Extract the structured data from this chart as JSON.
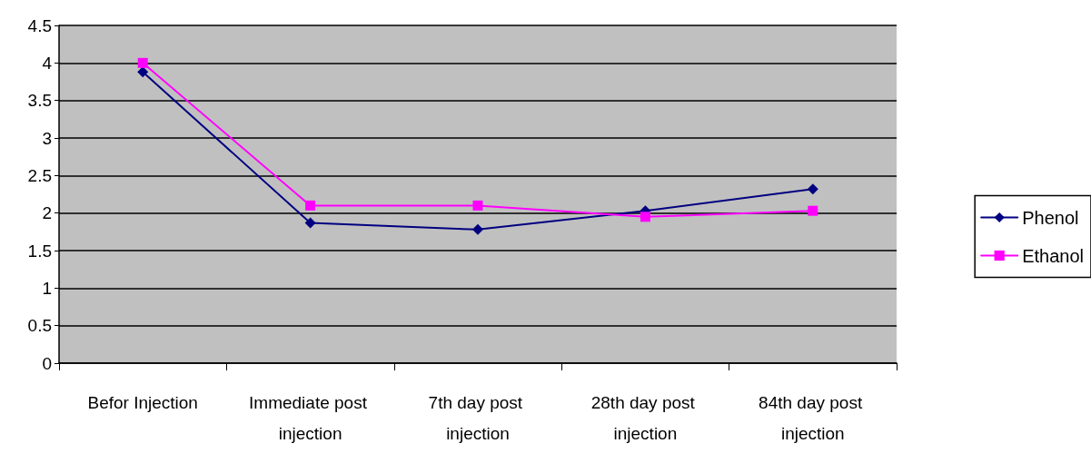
{
  "chart_data": {
    "type": "line",
    "categories": [
      "Befor Injection",
      "Immediate post injection",
      "7th day post injection",
      "28th day post injection",
      "84th day post injection"
    ],
    "series": [
      {
        "name": "Phenol",
        "color": "#000080",
        "marker": "diamond",
        "values": [
          3.88,
          1.87,
          1.78,
          2.03,
          2.32
        ]
      },
      {
        "name": "Ethanol",
        "color": "#ff00ff",
        "marker": "square",
        "values": [
          4.0,
          2.1,
          2.1,
          1.95,
          2.03
        ]
      }
    ],
    "ylim": [
      0,
      4.5
    ],
    "yticks": [
      0,
      0.5,
      1,
      1.5,
      2,
      2.5,
      3,
      3.5,
      4,
      4.5
    ],
    "grid": "y",
    "legend": "right"
  }
}
